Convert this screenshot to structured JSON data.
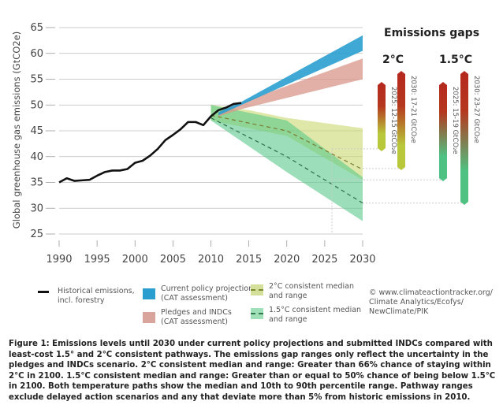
{
  "chart_data": {
    "type": "line",
    "title": "",
    "xlabel": "",
    "ylabel": "Global greenhouse gas emissions (GtCO2e)",
    "xlim": [
      1990,
      2030
    ],
    "ylim": [
      25,
      65
    ],
    "xticks": [
      1990,
      1995,
      2000,
      2005,
      2010,
      2015,
      2020,
      2025,
      2030
    ],
    "yticks": [
      25,
      30,
      35,
      40,
      45,
      50,
      55,
      60,
      65
    ],
    "grid": "horizontal",
    "historical": {
      "name": "Historical emissions, incl. forestry",
      "color": "#111111",
      "x": [
        1990,
        1991,
        1992,
        1993,
        1994,
        1995,
        1996,
        1997,
        1998,
        1999,
        2000,
        2001,
        2002,
        2003,
        2004,
        2005,
        2006,
        2007,
        2008,
        2009,
        2010,
        2011,
        2012,
        2013,
        2014
      ],
      "y": [
        35.0,
        35.8,
        35.3,
        35.4,
        35.5,
        36.3,
        37.0,
        37.3,
        37.3,
        37.6,
        38.8,
        39.2,
        40.2,
        41.5,
        43.2,
        44.2,
        45.3,
        46.7,
        46.7,
        46.1,
        47.8,
        49.0,
        49.5,
        50.2,
        50.4
      ]
    },
    "ranges": [
      {
        "name": "2°C consistent median and range",
        "color": "#c9d870",
        "x": [
          2010,
          2015,
          2020,
          2030
        ],
        "upper": [
          50,
          49,
          47.5,
          45.5
        ],
        "lower": [
          47,
          45.5,
          44,
          35.5
        ],
        "median": [
          48,
          46.5,
          45,
          37.5
        ]
      },
      {
        "name": "1.5°C consistent median and range",
        "color": "#58c88a",
        "x": [
          2010,
          2020,
          2030
        ],
        "upper": [
          50,
          47,
          36
        ],
        "lower": [
          47,
          37,
          27.5
        ],
        "median": [
          47.5,
          40,
          31
        ]
      },
      {
        "name": "Pledges and INDCs (CAT assessment)",
        "color": "#d9958a",
        "x": [
          2011,
          2014,
          2030
        ],
        "upper": [
          48.5,
          50.5,
          59
        ],
        "lower": [
          47.8,
          49.2,
          55
        ]
      },
      {
        "name": "Current policy projections (CAT assessment)",
        "color": "#2a9fcf",
        "x": [
          2011,
          2014,
          2030
        ],
        "upper": [
          48.6,
          50.6,
          63.5
        ],
        "lower": [
          48,
          50.0,
          60.5
        ]
      }
    ],
    "emissions_gaps": {
      "title": "Emissions gaps",
      "groups": [
        {
          "label": "2°C",
          "bars": [
            {
              "text": "2025: 12-15 GtCO₂e"
            },
            {
              "text": "2030: 17-21 GtCO₂e"
            }
          ]
        },
        {
          "label": "1.5°C",
          "bars": [
            {
              "text": "2025: 15-19 GtCO₂e"
            },
            {
              "text": "2030: 23-27 GtCO₂e"
            }
          ]
        }
      ]
    }
  },
  "legend": [
    {
      "label1": "Historical emissions,",
      "label2": "incl. forestry"
    },
    {
      "label1": "Current policy projections",
      "label2": "(CAT assessment)"
    },
    {
      "label1": "Pledges and INDCs",
      "label2": "(CAT assessment)"
    },
    {
      "label1": "2°C consistent median",
      "label2": "and range"
    },
    {
      "label1": "1.5°C consistent median",
      "label2": "and range"
    }
  ],
  "credit": [
    "© www.climateactiontracker.org/",
    "Climate Analytics/Ecofys/",
    "NewClimate/PIK"
  ],
  "caption": "Figure 1: Emissions levels until 2030 under current policy projections and submitted INDCs compared with least-cost 1.5° and 2°C consistent pathways. The emissions gap ranges only reflect the uncertainty in the pledges and INDCs scenario. 2°C consistent median and range: Greater than 66% chance of staying within 2°C in 2100. 1.5°C consistent median and range: Greater than or equal to 50% chance of being below 1.5°C in 2100. Both temperature paths show the median and 10th to 90th percentile range. Pathway ranges exclude delayed action scenarios and any that deviate more than 5% from historic emissions in 2010."
}
